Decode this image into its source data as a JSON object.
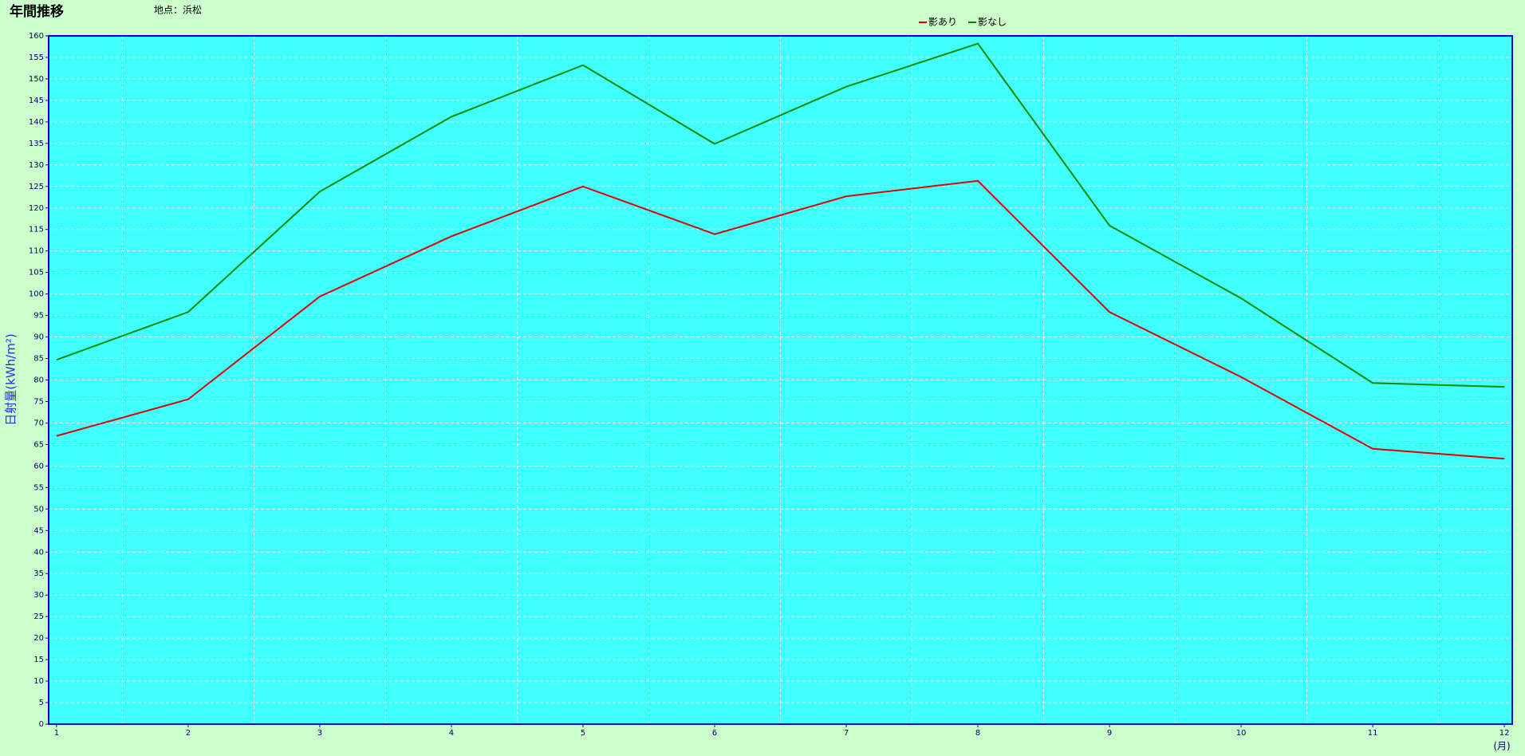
{
  "chart_data": {
    "type": "line",
    "title": "年間推移",
    "subtitle": "地点：浜松",
    "y_label": "日射量(kWh/m²)",
    "x_label": "(月)",
    "x": [
      1,
      2,
      3,
      4,
      5,
      6,
      7,
      8,
      9,
      10,
      11,
      12
    ],
    "xlim": [
      0.94,
      12.06
    ],
    "xticks": [
      1,
      2,
      3,
      4,
      5,
      6,
      7,
      8,
      9,
      10,
      11,
      12
    ],
    "ylim": [
      0,
      160
    ],
    "yticks": [
      0,
      5,
      10,
      15,
      20,
      25,
      30,
      35,
      40,
      45,
      50,
      55,
      60,
      65,
      70,
      75,
      80,
      85,
      90,
      95,
      100,
      105,
      110,
      115,
      120,
      125,
      130,
      135,
      140,
      145,
      150,
      155,
      160
    ],
    "grid": true,
    "legend": "top",
    "series": [
      {
        "name": "影あり",
        "color": "#dd0000",
        "values": [
          67,
          75.5,
          99.4,
          113.4,
          125,
          113.9,
          122.7,
          126.3,
          95.8,
          80.7,
          64,
          61.7
        ]
      },
      {
        "name": "影なし",
        "color": "#008800",
        "values": [
          84.7,
          95.8,
          123.8,
          141.2,
          153.2,
          134.9,
          148.2,
          158.2,
          115.9,
          99,
          79.3,
          78.4
        ]
      }
    ]
  }
}
